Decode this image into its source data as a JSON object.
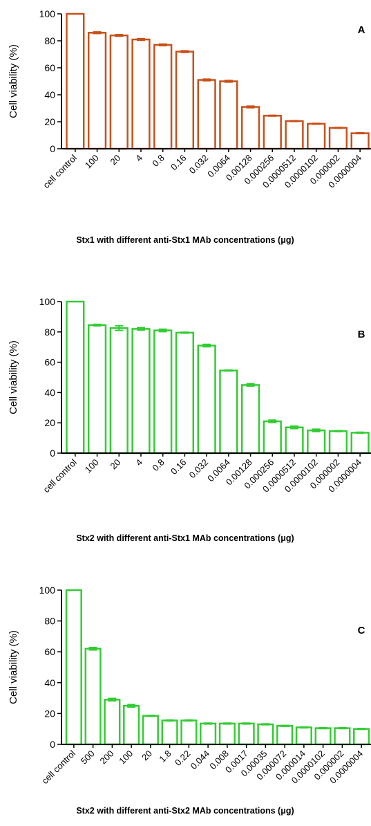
{
  "chart_data": [
    {
      "type": "bar",
      "panel_letter": "A",
      "ylabel": "Cell viability (%)",
      "xlabel": "Stx1 with different anti-Stx1 MAb concentrations (μg)",
      "ylim": [
        0,
        100
      ],
      "yticks": [
        "0",
        "20",
        "40",
        "60",
        "80",
        "100"
      ],
      "bar_color": "#c8501a",
      "categories": [
        "cell control",
        "100",
        "20",
        "4",
        "0.8",
        "0.16",
        "0.032",
        "0.0064",
        "0.00128",
        "0.000256",
        "0.0000512",
        "0.0000102",
        "0.000002",
        "0.0000004"
      ],
      "values": [
        100,
        86,
        84,
        81,
        77,
        72,
        51,
        50,
        31,
        24.5,
        20.5,
        18.5,
        15.5,
        11.5
      ],
      "errors": [
        0,
        0.6,
        0.6,
        0.6,
        0.6,
        0.6,
        0.6,
        0.6,
        0.6,
        0.3,
        0.3,
        0.3,
        0.3,
        0.3
      ]
    },
    {
      "type": "bar",
      "panel_letter": "B",
      "ylabel": "Cell viability (%)",
      "xlabel": "Stx2 with different anti-Stx1 MAb concentrations (μg)",
      "ylim": [
        0,
        100
      ],
      "yticks": [
        "0",
        "20",
        "40",
        "60",
        "80",
        "100"
      ],
      "bar_color": "#33cc33",
      "categories": [
        "cell control",
        "100",
        "20",
        "4",
        "0.8",
        "0.16",
        "0.032",
        "0.0064",
        "0.00128",
        "0.000256",
        "0.0000512",
        "0.0000102",
        "0.000002",
        "0.0000004"
      ],
      "values": [
        100,
        84.5,
        82.5,
        82,
        81,
        79.5,
        71,
        54.5,
        45,
        21,
        17,
        15,
        14.5,
        13.5
      ],
      "errors": [
        0,
        0.5,
        1.5,
        0.8,
        0.8,
        0.3,
        0.8,
        0.3,
        0.8,
        0.8,
        0.8,
        0.8,
        0.3,
        0.3
      ]
    },
    {
      "type": "bar",
      "panel_letter": "C",
      "ylabel": "Cell viability (%)",
      "xlabel": "Stx2 with different anti-Stx2 MAb concentrations (μg)",
      "ylim": [
        0,
        100
      ],
      "yticks": [
        "0",
        "20",
        "40",
        "60",
        "80",
        "100"
      ],
      "bar_color": "#33cc33",
      "categories": [
        "cell control",
        "500",
        "200",
        "100",
        "20",
        "1.8",
        "0.22",
        "0.044",
        "0.008",
        "0.0017",
        "0.00035",
        "0.000072",
        "0.000014",
        "0.0000102",
        "0.000002",
        "0.0000004"
      ],
      "values": [
        100,
        62,
        29,
        25,
        18.5,
        15.5,
        15.5,
        13.5,
        13.5,
        13.5,
        13,
        12,
        11,
        10.5,
        10.5,
        10
      ],
      "errors": [
        0,
        0.8,
        0.8,
        0.8,
        0.3,
        0.3,
        0.3,
        0.3,
        0.3,
        0.3,
        0.3,
        0.3,
        0.3,
        0.3,
        0.3,
        0.3
      ]
    }
  ]
}
